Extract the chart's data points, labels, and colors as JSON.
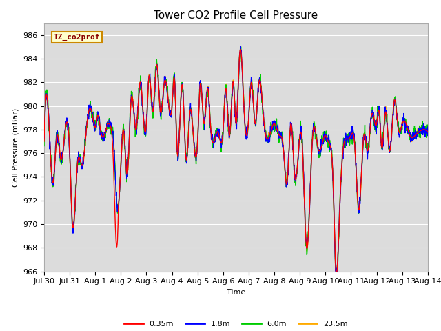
{
  "title": "Tower CO2 Profile Cell Pressure",
  "xlabel": "Time",
  "ylabel": "Cell Pressure (mBar)",
  "ylim": [
    966,
    987
  ],
  "yticks": [
    966,
    968,
    970,
    972,
    974,
    976,
    978,
    980,
    982,
    984,
    986
  ],
  "xtick_labels": [
    "Jul 30",
    "Jul 31",
    "Aug 1",
    "Aug 2",
    "Aug 3",
    "Aug 4",
    "Aug 5",
    "Aug 6",
    "Aug 7",
    "Aug 8",
    "Aug 9",
    "Aug 10",
    "Aug 11",
    "Aug 12",
    "Aug 13",
    "Aug 14"
  ],
  "series": [
    "0.35m",
    "1.8m",
    "6.0m",
    "23.5m"
  ],
  "colors": [
    "#ff0000",
    "#0000ff",
    "#00cc00",
    "#ffaa00"
  ],
  "annotation_text": "TZ_co2prof",
  "bg_color": "#dcdcdc",
  "grid_color": "#ffffff",
  "title_fontsize": 11,
  "label_fontsize": 8,
  "tick_fontsize": 8
}
